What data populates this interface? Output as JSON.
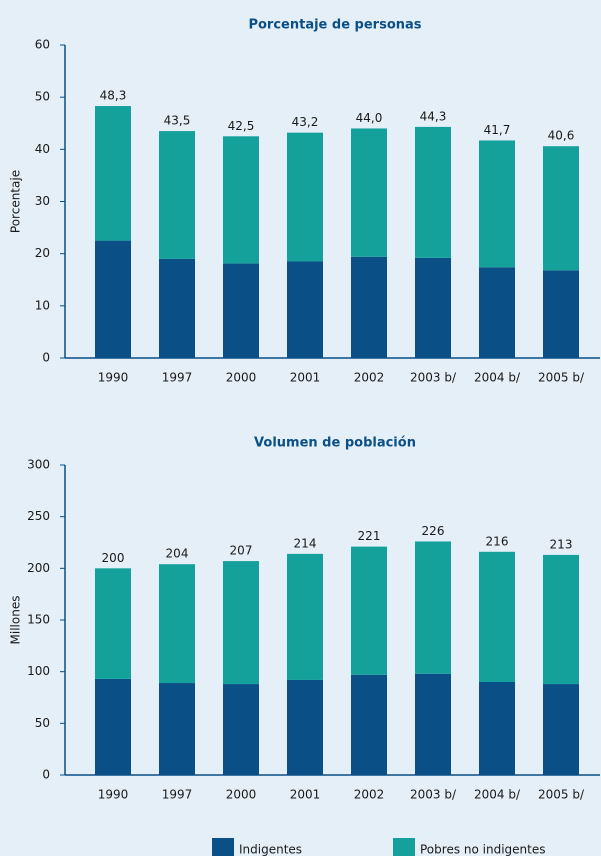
{
  "chart_data": [
    {
      "type": "stacked_bar",
      "title": "Porcentaje de personas",
      "y_label": "Porcentaje",
      "categories": [
        "1990",
        "1997",
        "2000",
        "2001",
        "2002",
        "2003 b/",
        "2004 b/",
        "2005 b/"
      ],
      "series": [
        {
          "name": "Indigentes",
          "color": "#0a4f86",
          "values": [
            22.5,
            19.0,
            18.1,
            18.5,
            19.4,
            19.2,
            17.4,
            16.8
          ],
          "value_labels": [
            "22,5",
            "19,0",
            "18,1",
            "18,5",
            "19,4",
            "19,2",
            "17,4",
            "16,8"
          ]
        },
        {
          "name": "Pobres no indigentes",
          "color": "#14a19c",
          "values": [
            25.8,
            24.5,
            24.4,
            24.7,
            24.6,
            25.1,
            24.3,
            23.8
          ]
        }
      ],
      "totals": [
        48.3,
        43.5,
        42.5,
        43.2,
        44.0,
        44.3,
        41.7,
        40.6
      ],
      "total_labels": [
        "48,3",
        "43,5",
        "42,5",
        "43,2",
        "44,0",
        "44,3",
        "41,7",
        "40,6"
      ],
      "ylim": [
        0,
        60
      ],
      "yticks": [
        0,
        10,
        20,
        30,
        40,
        50,
        60
      ]
    },
    {
      "type": "stacked_bar",
      "title": "Volumen de población",
      "y_label": "Millones",
      "categories": [
        "1990",
        "1997",
        "2000",
        "2001",
        "2002",
        "2003 b/",
        "2004 b/",
        "2005 b/"
      ],
      "series": [
        {
          "name": "Indigentes",
          "color": "#0a4f86",
          "values": [
            93,
            89,
            88,
            92,
            97,
            98,
            90,
            88
          ]
        },
        {
          "name": "Pobres no indigentes",
          "color": "#14a19c",
          "values": [
            107,
            115,
            119,
            122,
            124,
            128,
            126,
            125
          ]
        }
      ],
      "totals": [
        200,
        204,
        207,
        214,
        221,
        226,
        216,
        213
      ],
      "ylim": [
        0,
        300
      ],
      "yticks": [
        0,
        50,
        100,
        150,
        200,
        250,
        300
      ]
    }
  ]
}
